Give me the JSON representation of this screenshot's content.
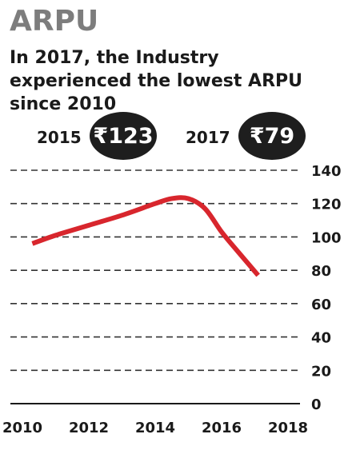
{
  "header": {
    "title": "ARPU",
    "subtitle": "In 2017, the Industry experienced the lowest ARPU since 2010"
  },
  "callouts": [
    {
      "year": "2015",
      "value": "₹123"
    },
    {
      "year": "2017",
      "value": "₹79"
    }
  ],
  "colors": {
    "line": "#d8262d",
    "badge": "#1e1e1e",
    "title": "#7d7d7d"
  },
  "chart_data": {
    "type": "line",
    "title": "ARPU",
    "subtitle": "In 2017, the Industry experienced the lowest ARPU since 2010",
    "xlabel": "",
    "ylabel": "",
    "x_ticks": [
      "2010",
      "2012",
      "2014",
      "2016",
      "2018"
    ],
    "y_ticks": [
      "0",
      "20",
      "40",
      "60",
      "80",
      "100",
      "120",
      "140"
    ],
    "xlim": [
      2010,
      2018
    ],
    "ylim": [
      0,
      140
    ],
    "grid": true,
    "series": [
      {
        "x": [
          2010.3,
          2011,
          2012,
          2013,
          2014,
          2014.5,
          2015,
          2015.5,
          2016,
          2016.5,
          2017.1
        ],
        "values": [
          96,
          101,
          107,
          113,
          120,
          123,
          123,
          117,
          103,
          91,
          77
        ]
      }
    ]
  }
}
